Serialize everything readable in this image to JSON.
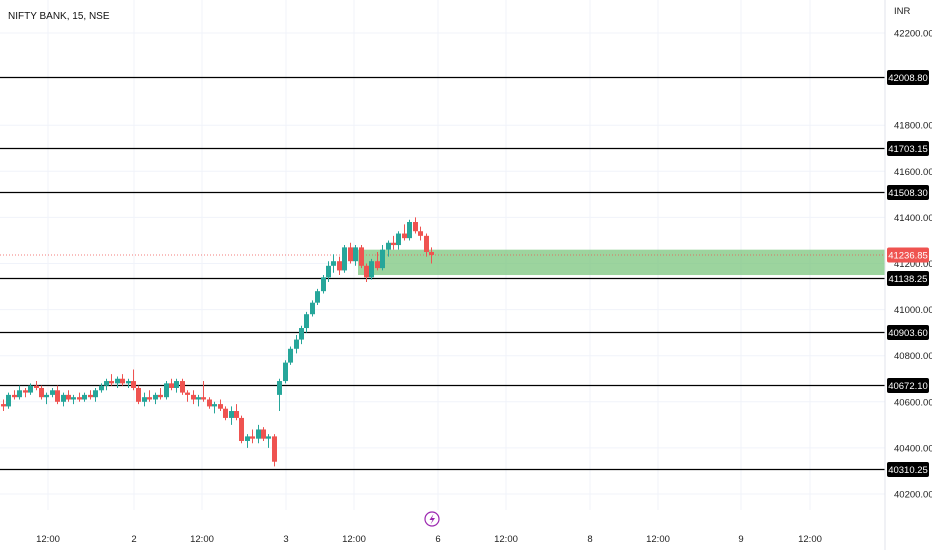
{
  "header": {
    "title": "NIFTY BANK, 15, NSE",
    "currency": "INR"
  },
  "colors": {
    "up": "#26a69a",
    "down": "#ef5350",
    "level_line": "#000000",
    "zone": "#7bc67e",
    "last_price_label": "#ef5350",
    "bolt": "#9c27b0"
  },
  "icons": {
    "event": "lightning-bolt-icon"
  },
  "chart_data": {
    "type": "candlestick",
    "ylim": [
      40160,
      42260
    ],
    "y_ticks": [
      "42200.00",
      "41800.00",
      "41600.00",
      "41400.00",
      "41200.00",
      "41000.00",
      "40800.00",
      "40600.00",
      "40400.00",
      "40200.00"
    ],
    "x_ticks": [
      "12:00",
      "2",
      "12:00",
      "3",
      "12:00",
      "6",
      "12:00",
      "8",
      "12:00",
      "9",
      "12:00"
    ],
    "levels": [
      {
        "label": "42008.80",
        "value": 42008.8
      },
      {
        "label": "41703.15",
        "value": 41703.15
      },
      {
        "label": "41508.30",
        "value": 41508.3
      },
      {
        "label": "41138.25",
        "value": 41138.25
      },
      {
        "label": "40903.60",
        "value": 40903.6
      },
      {
        "label": "40672.10",
        "value": 40672.1
      },
      {
        "label": "40310.25",
        "value": 40310.25
      }
    ],
    "last_price": {
      "label": "41236.85",
      "value": 41236.85
    },
    "demand_zone": {
      "top": 41260,
      "bottom": 41150
    },
    "candles": [
      [
        40590,
        40610,
        40560,
        40580
      ],
      [
        40580,
        40640,
        40570,
        40630
      ],
      [
        40630,
        40650,
        40610,
        40620
      ],
      [
        40620,
        40670,
        40610,
        40650
      ],
      [
        40650,
        40660,
        40620,
        40640
      ],
      [
        40640,
        40680,
        40630,
        40670
      ],
      [
        40670,
        40690,
        40650,
        40660
      ],
      [
        40660,
        40670,
        40610,
        40620
      ],
      [
        40620,
        40640,
        40590,
        40630
      ],
      [
        40630,
        40660,
        40620,
        40650
      ],
      [
        40650,
        40670,
        40590,
        40600
      ],
      [
        40600,
        40640,
        40580,
        40630
      ],
      [
        40630,
        40650,
        40600,
        40610
      ],
      [
        40610,
        40630,
        40590,
        40620
      ],
      [
        40620,
        40640,
        40600,
        40610
      ],
      [
        40610,
        40640,
        40600,
        40630
      ],
      [
        40630,
        40650,
        40610,
        40620
      ],
      [
        40620,
        40660,
        40600,
        40650
      ],
      [
        40650,
        40680,
        40640,
        40670
      ],
      [
        40670,
        40700,
        40650,
        40690
      ],
      [
        40690,
        40720,
        40670,
        40680
      ],
      [
        40680,
        40710,
        40660,
        40700
      ],
      [
        40700,
        40720,
        40670,
        40680
      ],
      [
        40680,
        40700,
        40660,
        40690
      ],
      [
        40690,
        40740,
        40650,
        40660
      ],
      [
        40660,
        40670,
        40590,
        40600
      ],
      [
        40600,
        40640,
        40580,
        40620
      ],
      [
        40620,
        40650,
        40600,
        40610
      ],
      [
        40610,
        40640,
        40590,
        40630
      ],
      [
        40630,
        40660,
        40610,
        40620
      ],
      [
        40620,
        40690,
        40610,
        40680
      ],
      [
        40680,
        40700,
        40650,
        40660
      ],
      [
        40660,
        40700,
        40640,
        40690
      ],
      [
        40690,
        40700,
        40630,
        40640
      ],
      [
        40640,
        40650,
        40600,
        40630
      ],
      [
        40630,
        40650,
        40590,
        40610
      ],
      [
        40610,
        40630,
        40580,
        40620
      ],
      [
        40620,
        40690,
        40600,
        40610
      ],
      [
        40610,
        40620,
        40570,
        40580
      ],
      [
        40580,
        40600,
        40550,
        40590
      ],
      [
        40590,
        40610,
        40560,
        40570
      ],
      [
        40570,
        40580,
        40520,
        40530
      ],
      [
        40530,
        40580,
        40500,
        40560
      ],
      [
        40560,
        40590,
        40520,
        40530
      ],
      [
        40530,
        40540,
        40420,
        40430
      ],
      [
        40430,
        40460,
        40400,
        40450
      ],
      [
        40450,
        40480,
        40420,
        40440
      ],
      [
        40440,
        40500,
        40420,
        40480
      ],
      [
        40480,
        40490,
        40430,
        40440
      ],
      [
        40440,
        40460,
        40400,
        40450
      ],
      [
        40450,
        40460,
        40320,
        40340
      ],
      [
        40630,
        40700,
        40560,
        40690
      ],
      [
        40690,
        40780,
        40680,
        40770
      ],
      [
        40770,
        40840,
        40760,
        40830
      ],
      [
        40830,
        40890,
        40810,
        40870
      ],
      [
        40870,
        40930,
        40850,
        40920
      ],
      [
        40920,
        40990,
        40900,
        40980
      ],
      [
        40980,
        41040,
        40970,
        41030
      ],
      [
        41030,
        41090,
        41020,
        41080
      ],
      [
        41080,
        41150,
        41070,
        41140
      ],
      [
        41140,
        41210,
        41120,
        41190
      ],
      [
        41190,
        41240,
        41160,
        41210
      ],
      [
        41210,
        41230,
        41150,
        41170
      ],
      [
        41170,
        41280,
        41160,
        41270
      ],
      [
        41270,
        41290,
        41200,
        41210
      ],
      [
        41210,
        41280,
        41190,
        41270
      ],
      [
        41270,
        41280,
        41180,
        41190
      ],
      [
        41190,
        41200,
        41120,
        41140
      ],
      [
        41140,
        41220,
        41130,
        41210
      ],
      [
        41210,
        41250,
        41170,
        41180
      ],
      [
        41180,
        41280,
        41170,
        41260
      ],
      [
        41260,
        41300,
        41230,
        41290
      ],
      [
        41290,
        41320,
        41260,
        41280
      ],
      [
        41280,
        41340,
        41260,
        41330
      ],
      [
        41330,
        41370,
        41300,
        41310
      ],
      [
        41310,
        41390,
        41300,
        41380
      ],
      [
        41380,
        41400,
        41330,
        41340
      ],
      [
        41340,
        41360,
        41300,
        41320
      ],
      [
        41320,
        41330,
        41230,
        41250
      ],
      [
        41250,
        41270,
        41200,
        41237
      ]
    ]
  }
}
